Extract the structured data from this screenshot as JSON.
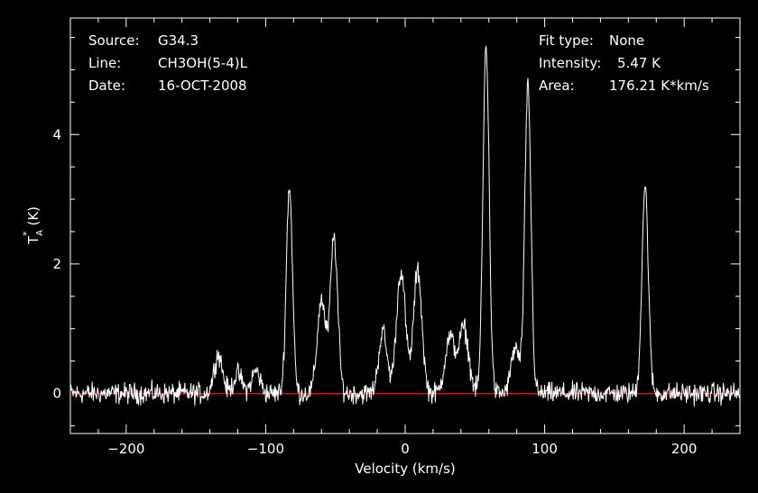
{
  "chart_data": {
    "type": "line",
    "xlabel": "Velocity (km/s)",
    "ylabel": "T",
    "ylabel_sup": "*",
    "ylabel_sub": "A",
    "ylabel_unit": "(K)",
    "xlim": [
      -240,
      240
    ],
    "ylim": [
      -0.62,
      5.8
    ],
    "xticks": [
      -200,
      -100,
      0,
      100,
      200
    ],
    "yticks": [
      0,
      2,
      4
    ],
    "grid": false,
    "colors": {
      "background": "#000000",
      "foreground": "#ffffff",
      "baseline": "#cc2020"
    },
    "baseline": 0,
    "info": {
      "source_label": "Source:",
      "source_value": "G34.3",
      "line_label": "Line:",
      "line_value": "CH3OH(5-4)L",
      "date_label": "Date:",
      "date_value": "16-OCT-2008",
      "fit_label": "Fit type:",
      "fit_value": "None",
      "intensity_label": "Intensity:",
      "intensity_value": "5.47 K",
      "area_label": "Area:",
      "area_value": "176.21 K*km/s"
    },
    "series": [
      {
        "noise_rms": 0.1,
        "components": [
          {
            "center": -134,
            "amplitude": 0.6,
            "width": 3
          },
          {
            "center": -120,
            "amplitude": 0.3,
            "width": 3
          },
          {
            "center": -107,
            "amplitude": 0.35,
            "width": 3
          },
          {
            "center": -83,
            "amplitude": 3.2,
            "width": 2.2
          },
          {
            "center": -60,
            "amplitude": 1.45,
            "width": 3
          },
          {
            "center": -51,
            "amplitude": 2.4,
            "width": 2.6
          },
          {
            "center": -16,
            "amplitude": 0.95,
            "width": 3
          },
          {
            "center": -3,
            "amplitude": 1.9,
            "width": 3.2
          },
          {
            "center": 9,
            "amplitude": 1.9,
            "width": 3
          },
          {
            "center": 32,
            "amplitude": 0.85,
            "width": 3.5
          },
          {
            "center": 42,
            "amplitude": 1.0,
            "width": 3.5
          },
          {
            "center": 58,
            "amplitude": 5.4,
            "width": 2.2
          },
          {
            "center": 79,
            "amplitude": 0.7,
            "width": 3
          },
          {
            "center": 88,
            "amplitude": 4.75,
            "width": 2.2
          },
          {
            "center": 172,
            "amplitude": 3.2,
            "width": 2.3
          }
        ]
      }
    ]
  }
}
